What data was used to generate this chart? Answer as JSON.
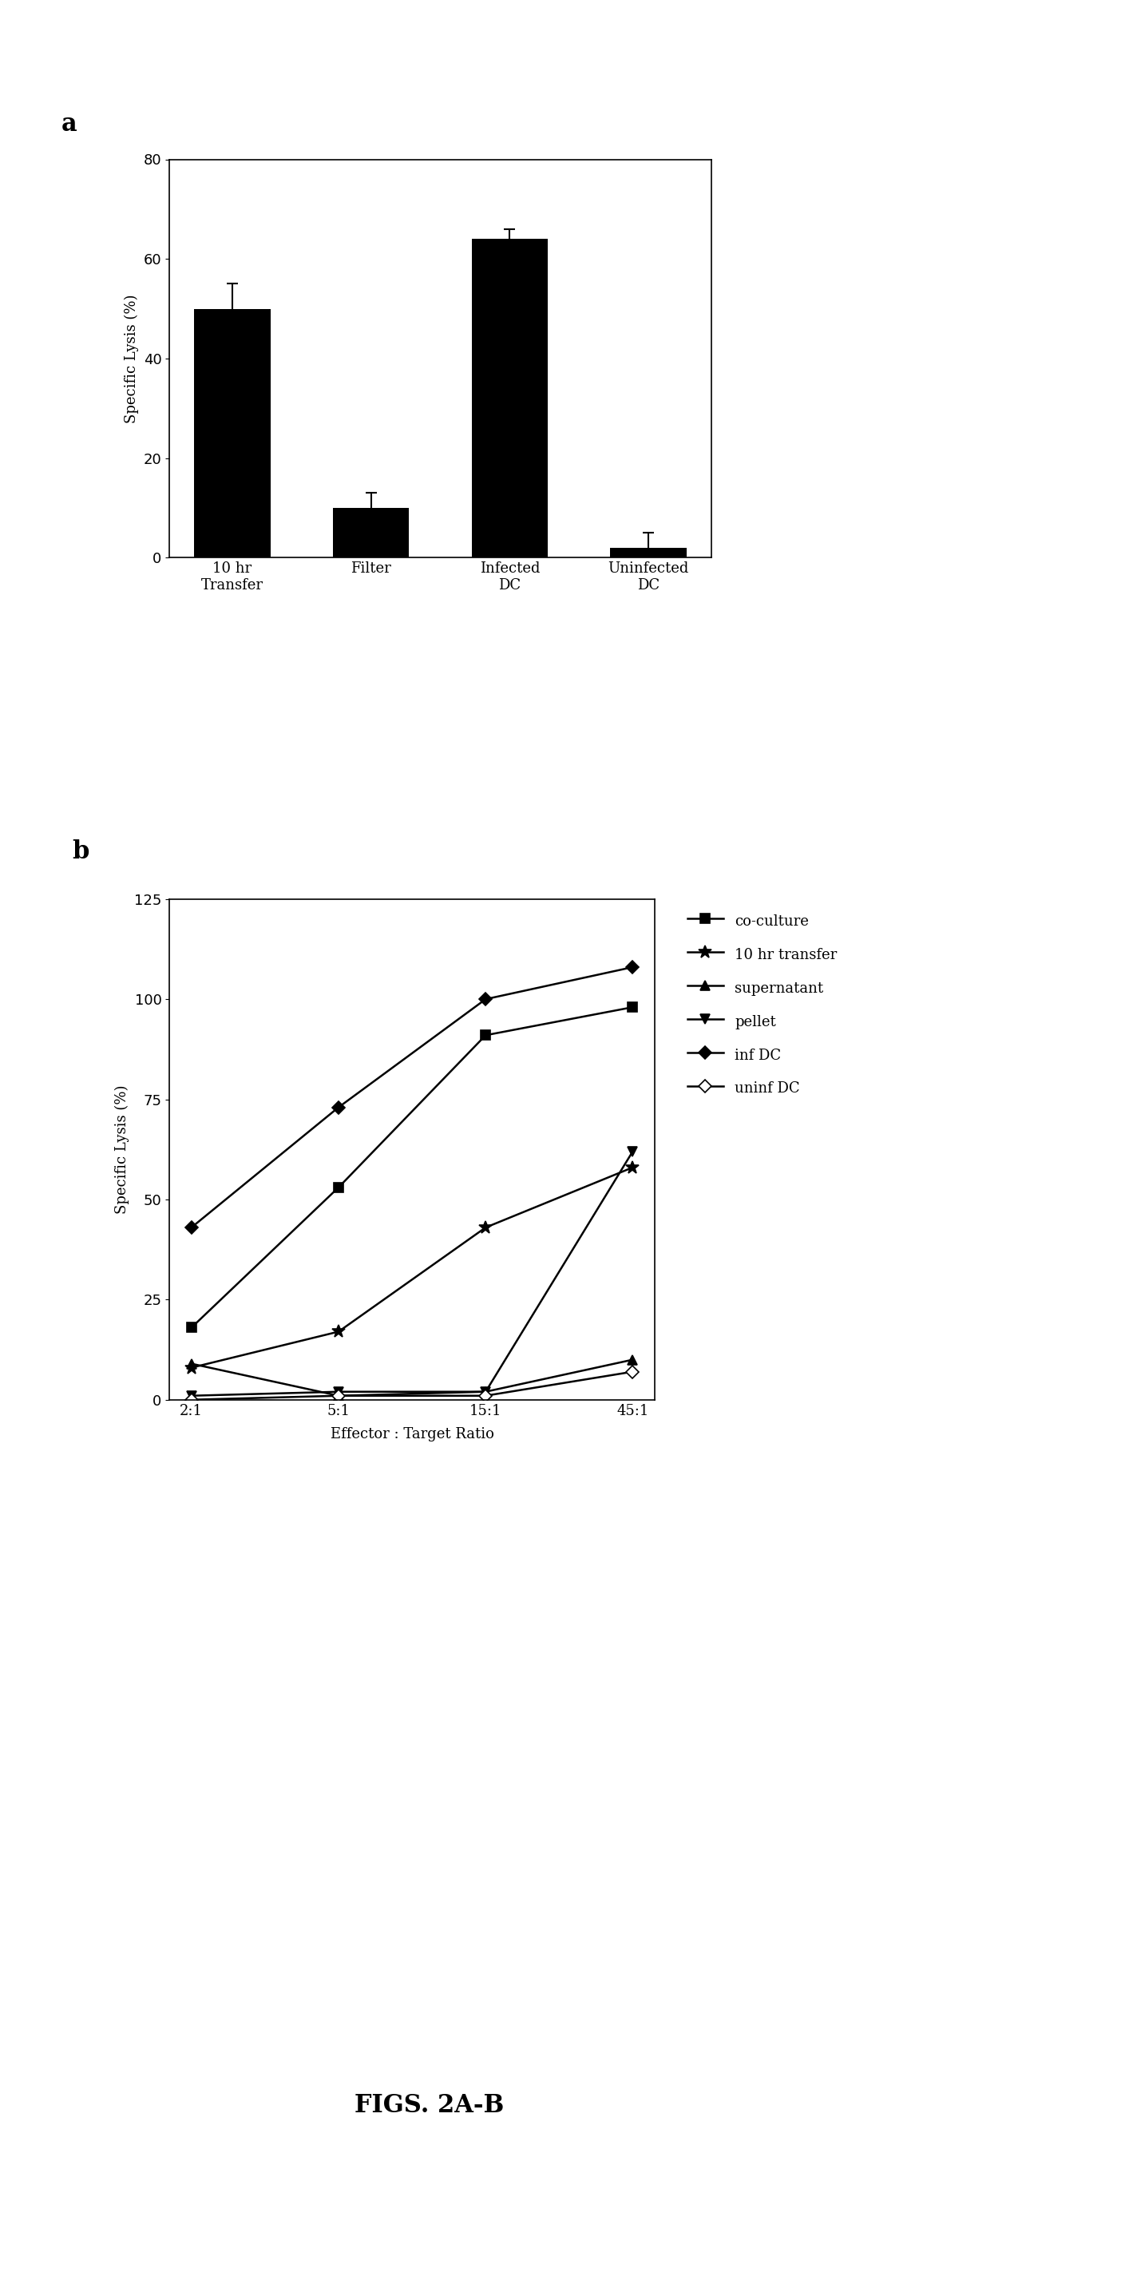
{
  "panel_a": {
    "categories": [
      "10 hr\nTransfer",
      "Filter",
      "Infected\nDC",
      "Uninfected\nDC"
    ],
    "values": [
      50,
      10,
      64,
      2
    ],
    "errors": [
      5,
      3,
      2,
      3
    ],
    "ylabel": "Specific Lysis (%)",
    "ylim": [
      0,
      80
    ],
    "yticks": [
      0,
      20,
      40,
      60,
      80
    ],
    "label": "a"
  },
  "panel_b": {
    "x_labels": [
      "2:1",
      "5:1",
      "15:1",
      "45:1"
    ],
    "x_values": [
      0,
      1,
      2,
      3
    ],
    "series": {
      "co-culture": {
        "values": [
          18,
          53,
          91,
          98
        ]
      },
      "10 hr transfer": {
        "values": [
          8,
          17,
          43,
          58
        ]
      },
      "supernatant": {
        "values": [
          9,
          1,
          2,
          10
        ]
      },
      "pellet": {
        "values": [
          1,
          2,
          2,
          62
        ]
      },
      "inf DC": {
        "values": [
          43,
          73,
          100,
          108
        ]
      },
      "uninf DC": {
        "values": [
          0,
          1,
          1,
          7
        ]
      }
    },
    "series_order": [
      "co-culture",
      "10 hr transfer",
      "supernatant",
      "pellet",
      "inf DC",
      "uninf DC"
    ],
    "markers": {
      "co-culture": {
        "marker": "s",
        "mfc": "black",
        "mec": "black",
        "msize": 8
      },
      "10 hr transfer": {
        "marker": "*",
        "mfc": "black",
        "mec": "black",
        "msize": 12
      },
      "supernatant": {
        "marker": "^",
        "mfc": "black",
        "mec": "black",
        "msize": 8
      },
      "pellet": {
        "marker": "v",
        "mfc": "black",
        "mec": "black",
        "msize": 8
      },
      "inf DC": {
        "marker": "D",
        "mfc": "black",
        "mec": "black",
        "msize": 8
      },
      "uninf DC": {
        "marker": "D",
        "mfc": "white",
        "mec": "black",
        "msize": 8
      }
    },
    "ylabel": "Specific Lysis (%)",
    "xlabel": "Effector : Target Ratio",
    "ylim": [
      0,
      125
    ],
    "yticks": [
      0,
      25,
      50,
      75,
      100,
      125
    ],
    "label": "b"
  },
  "figure_label": "FIGS. 2A-B",
  "background_color": "#ffffff",
  "bar_color": "#000000",
  "line_color": "#000000"
}
